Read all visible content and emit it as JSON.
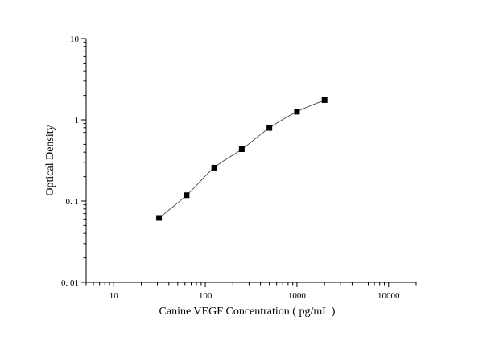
{
  "chart_data": {
    "type": "scatter",
    "xscale": "log",
    "yscale": "log",
    "xlabel": "Canine VEGF Concentration ( pg/mL )",
    "ylabel": "Optical Density",
    "xlim": [
      5,
      20000
    ],
    "ylim": [
      0.01,
      10
    ],
    "x_ticks": [
      10,
      100,
      1000,
      10000
    ],
    "x_tick_labels": [
      "10",
      "100",
      "1000",
      "10000"
    ],
    "y_ticks": [
      0.01,
      0.1,
      1,
      10
    ],
    "y_tick_labels": [
      "0. 01",
      "0. 1",
      "1",
      "10"
    ],
    "grid": false,
    "legend": "none",
    "fit_curve": true,
    "points": [
      {
        "x": 31.25,
        "y": 0.062
      },
      {
        "x": 62.5,
        "y": 0.118
      },
      {
        "x": 125,
        "y": 0.258
      },
      {
        "x": 250,
        "y": 0.435
      },
      {
        "x": 500,
        "y": 0.795
      },
      {
        "x": 1000,
        "y": 1.26
      },
      {
        "x": 2000,
        "y": 1.75
      }
    ],
    "colors": {
      "marker": "#000000",
      "curve": "#333333",
      "axes": "#000000"
    }
  }
}
